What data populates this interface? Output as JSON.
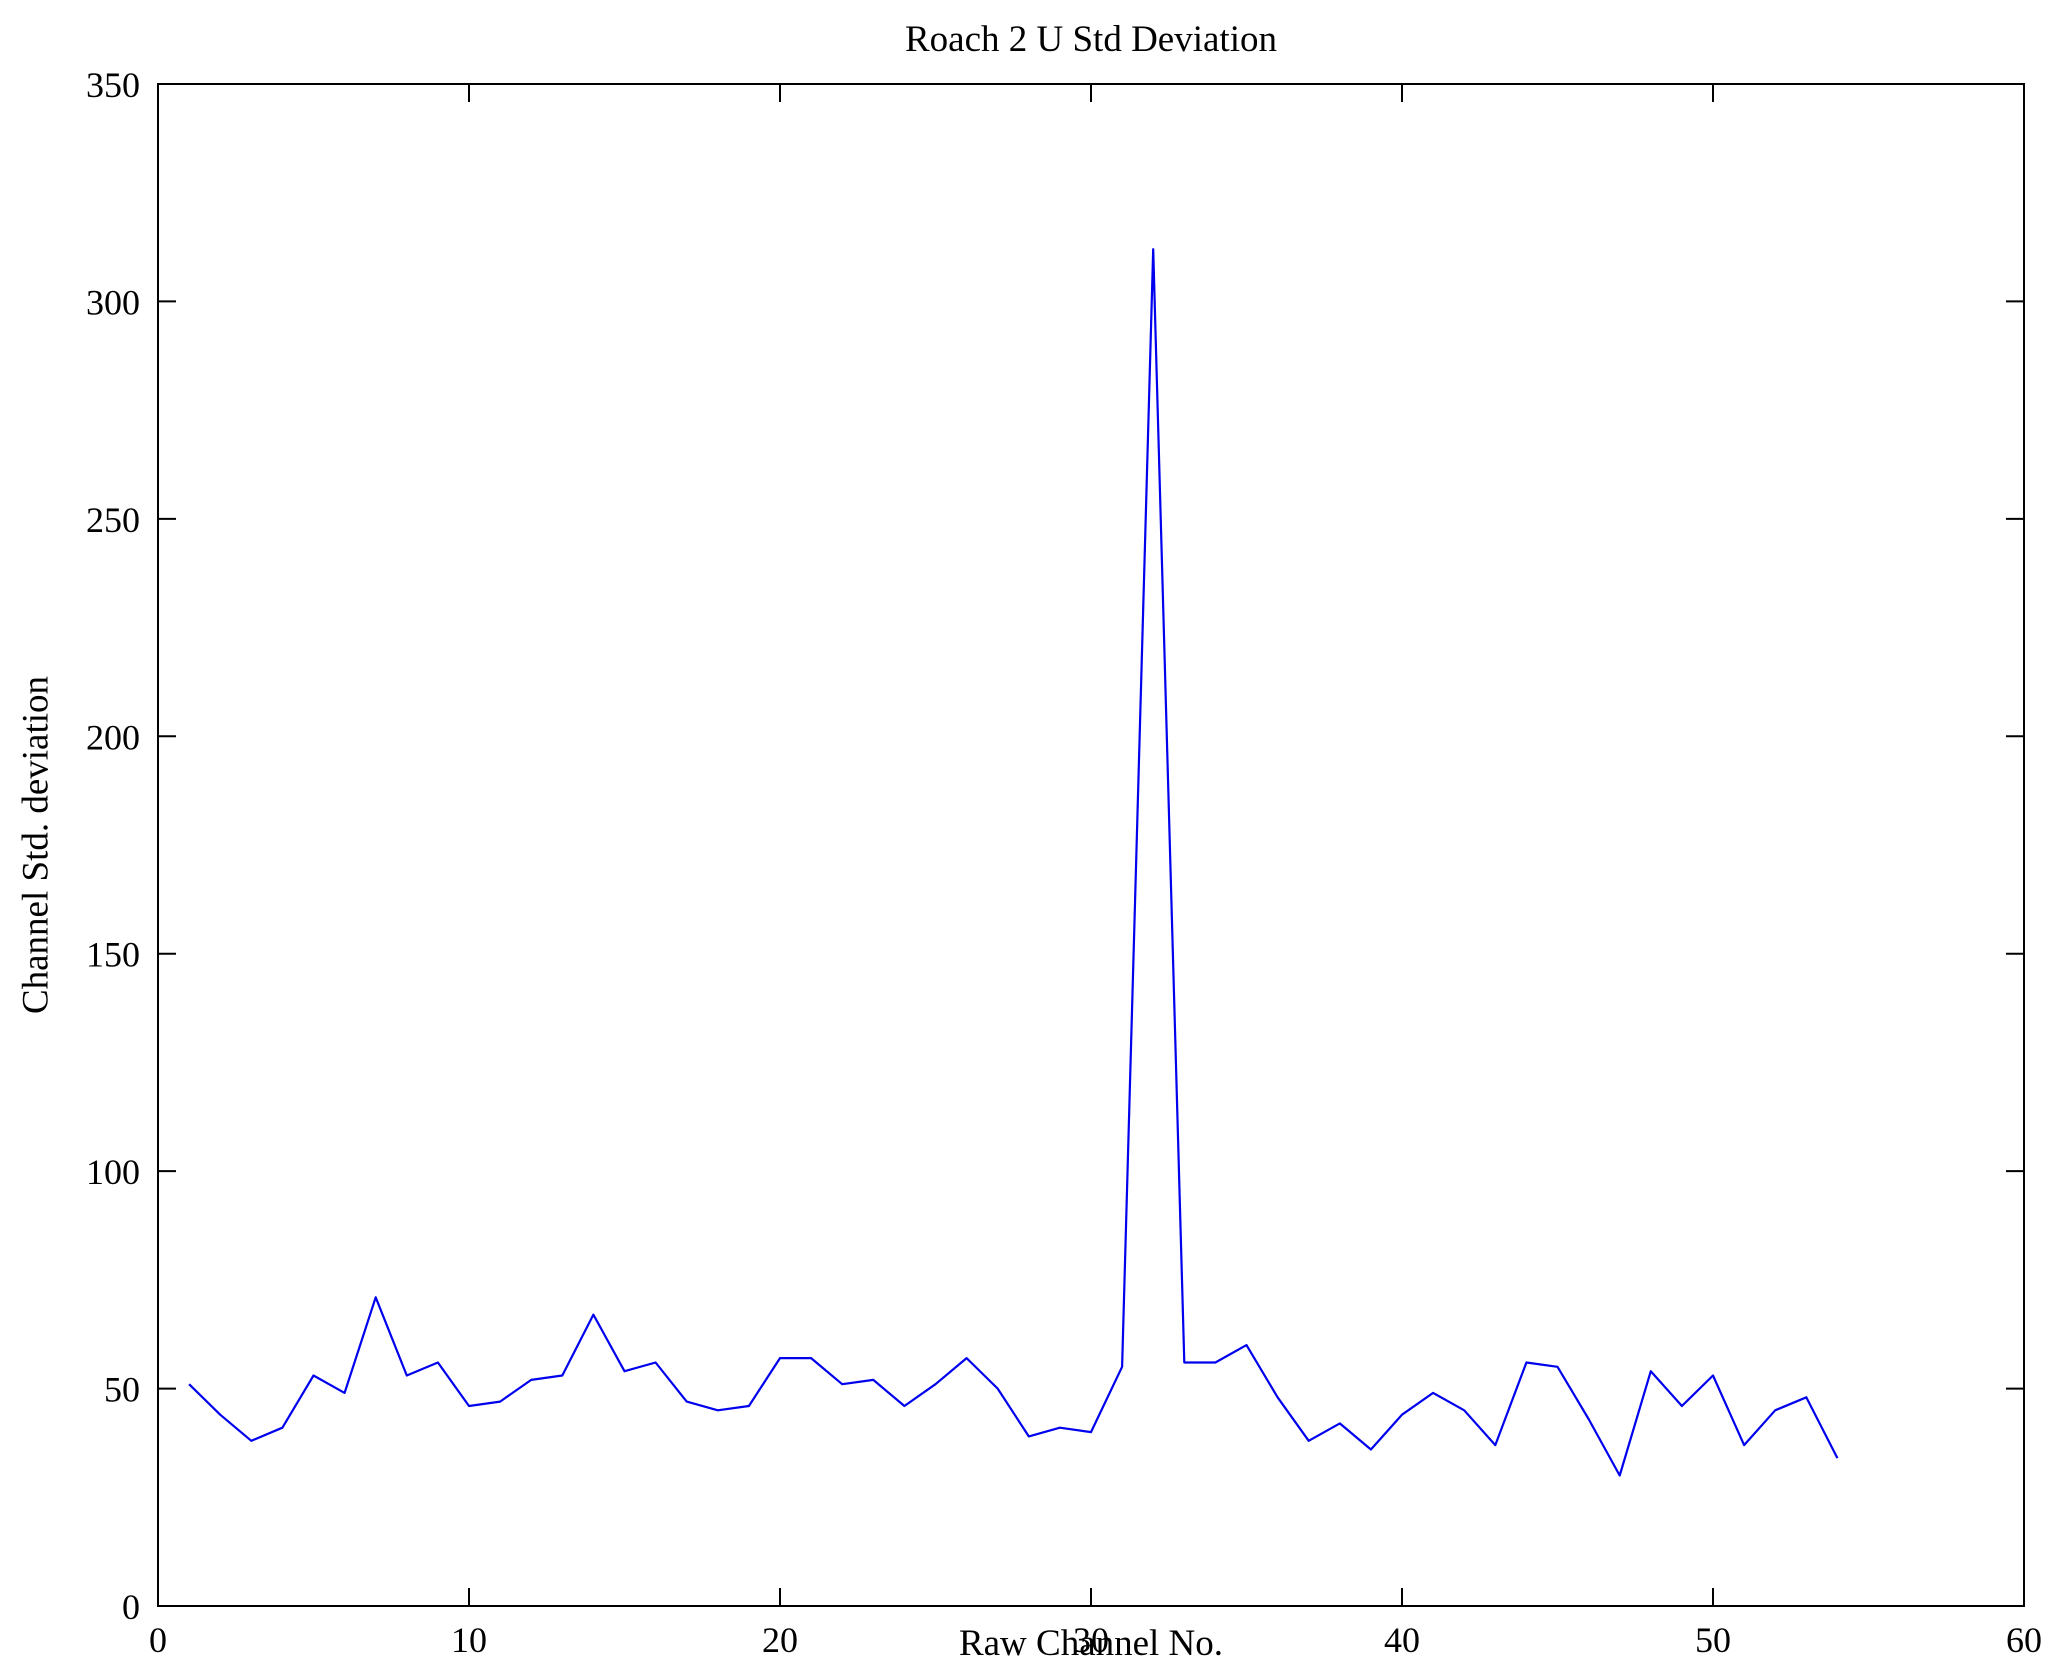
{
  "figure": {
    "title": "Roach 2 U Std Deviation",
    "xlabel": "Raw Channel No.",
    "ylabel": "Channel Std. deviation"
  },
  "chart_data": {
    "type": "line",
    "title": "Roach 2 U Std Deviation",
    "xlabel": "Raw Channel No.",
    "ylabel": "Channel Std. deviation",
    "xlim": [
      0,
      60
    ],
    "ylim": [
      0,
      350
    ],
    "xticks": [
      0,
      10,
      20,
      30,
      40,
      50,
      60
    ],
    "yticks": [
      0,
      50,
      100,
      150,
      200,
      250,
      300,
      350
    ],
    "grid": false,
    "legend": "none",
    "line_color": "#0000ee",
    "axis_color": "#000000",
    "background_color": "#ffffff",
    "series_name": "Channel Std. deviation",
    "x": [
      1,
      2,
      3,
      4,
      5,
      6,
      7,
      8,
      9,
      10,
      11,
      12,
      13,
      14,
      15,
      16,
      17,
      18,
      19,
      20,
      21,
      22,
      23,
      24,
      25,
      26,
      27,
      28,
      29,
      30,
      31,
      32,
      33,
      34,
      35,
      36,
      37,
      38,
      39,
      40,
      41,
      42,
      43,
      44,
      45,
      46,
      47,
      48,
      49,
      50,
      51,
      52,
      53,
      54
    ],
    "y": [
      51,
      44,
      38,
      41,
      53,
      49,
      71,
      53,
      56,
      46,
      47,
      52,
      53,
      67,
      54,
      56,
      47,
      45,
      46,
      57,
      57,
      51,
      52,
      46,
      51,
      57,
      50,
      39,
      41,
      40,
      55,
      312,
      56,
      56,
      60,
      48,
      38,
      42,
      36,
      44,
      49,
      45,
      37,
      56,
      55,
      43,
      30,
      54,
      46,
      53,
      37,
      45,
      48,
      34
    ]
  }
}
